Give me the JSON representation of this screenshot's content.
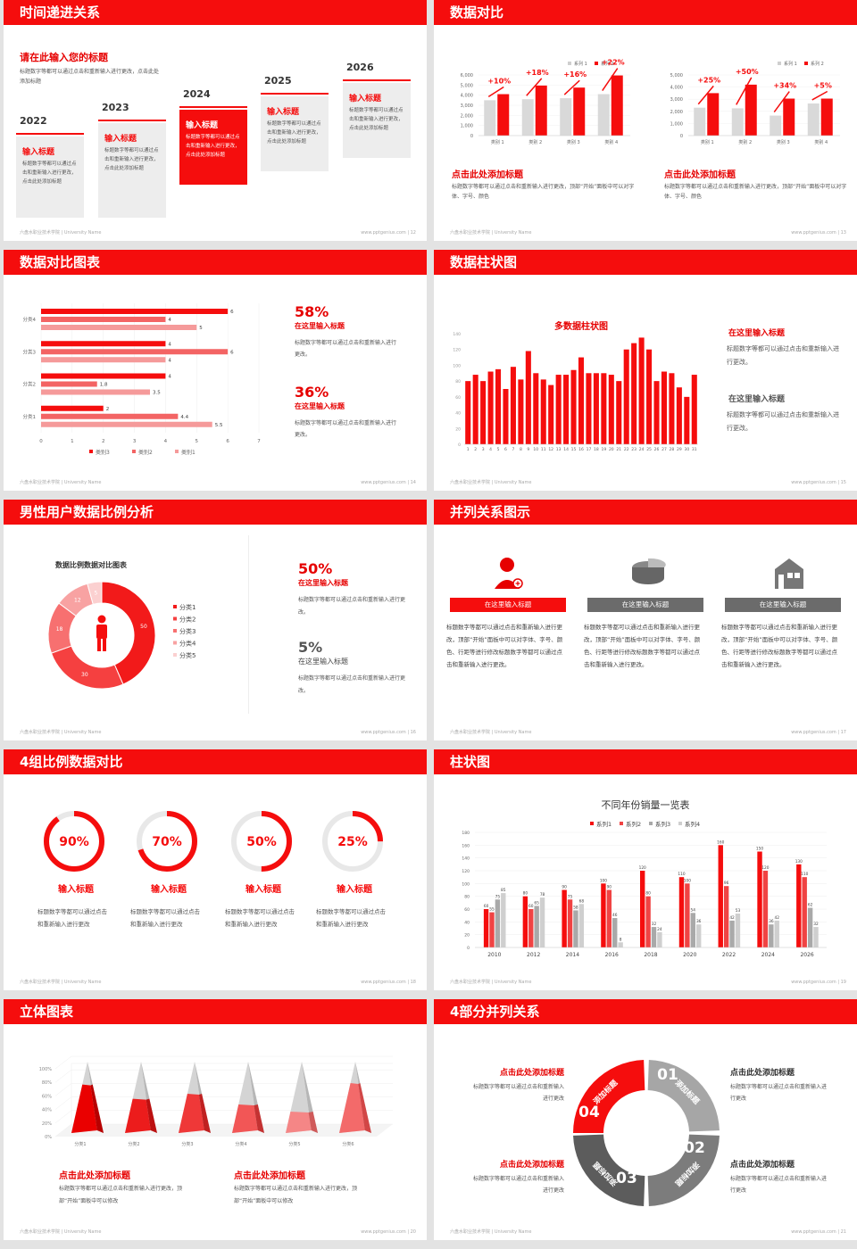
{
  "footer": {
    "school": "六盘水职业技术学院 | University Name",
    "site": "www.pptgenius.com"
  },
  "colors": {
    "accent": "#f50d0d",
    "light": "#f59a9a",
    "pale": "#f9c6c6",
    "gray": "#cfcfcf",
    "dark": "#6b6b6b"
  },
  "s12": {
    "title": "时间递进关系",
    "page": "12",
    "heading": "请在此输入您的标题",
    "desc": "标题数字等都可以通过点击和重新输入进行更改，点击此处添加标题",
    "items": [
      {
        "year": "2022",
        "label": "输入标题",
        "text": "标题数字等都可以通过点击和重新输入进行更改，点击此处添加标题"
      },
      {
        "year": "2023",
        "label": "输入标题",
        "text": "标题数字等都可以通过点击和重新输入进行更改，点击此处添加标题"
      },
      {
        "year": "2024",
        "label": "输入标题",
        "text": "标题数字等都可以通过点击和重新输入进行更改，点击此处添加标题"
      },
      {
        "year": "2025",
        "label": "输入标题",
        "text": "标题数字等都可以通过点击和重新输入进行更改，点击此处添加标题"
      },
      {
        "year": "2026",
        "label": "输入标题",
        "text": "标题数字等都可以通过点击和重新输入进行更改，点击此处添加标题"
      }
    ]
  },
  "s13": {
    "title": "数据对比",
    "page": "13",
    "legend": [
      "系列 1",
      "系列 2"
    ],
    "cats": [
      "类别 1",
      "类别 2",
      "类别 3",
      "类别 4"
    ],
    "charts": [
      {
        "ticks": [
          "0",
          "1,000",
          "2,000",
          "3,000",
          "4,000",
          "5,000",
          "6,000"
        ],
        "pct": [
          "+10%",
          "+18%",
          "+16%",
          "+22%"
        ],
        "heading": "点击此处添加标题",
        "text": "标题数字等都可以通过点击和重新输入进行更改，顶部“开始”面板中可以对字体、字号、颜色"
      },
      {
        "ticks": [
          "0",
          "1,000",
          "2,000",
          "3,000",
          "4,000",
          "5,000"
        ],
        "pct": [
          "+25%",
          "+50%",
          "+34%",
          "+5%"
        ],
        "heading": "点击此处添加标题",
        "text": "标题数字等都可以通过点击和重新输入进行更改，顶部“开始”面板中可以对字体、字号、颜色"
      }
    ]
  },
  "s14": {
    "title": "数据对比图表",
    "page": "14",
    "cats": [
      "分类4",
      "分类3",
      "分类2",
      "分类1"
    ],
    "ticks": [
      "0",
      "1",
      "2",
      "3",
      "4",
      "5",
      "6",
      "7"
    ],
    "legend": [
      "类别3",
      "类别2",
      "类别1"
    ],
    "stats": [
      {
        "pct": "58%",
        "label": "在这里输入标题",
        "text": "标题数字等都可以通过点击和重新输入进行更改。"
      },
      {
        "pct": "36%",
        "label": "在这里输入标题",
        "text": "标题数字等都可以通过点击和重新输入进行更改。"
      }
    ]
  },
  "s15": {
    "title": "数据柱状图",
    "page": "15",
    "chart_title": "多数据柱状图",
    "yticks": [
      "0",
      "20",
      "40",
      "60",
      "80",
      "100",
      "120",
      "140"
    ],
    "notes": [
      {
        "label": "在这里输入标题",
        "text": "标题数字等都可以通过点击和重新输入进行更改。"
      },
      {
        "label": "在这里输入标题",
        "text": "标题数字等都可以通过点击和重新输入进行更改。"
      }
    ]
  },
  "s16": {
    "title": "男性用户数据比例分析",
    "page": "16",
    "chart_title": "数据比例数据对比图表",
    "legend": [
      "分类1",
      "分类2",
      "分类3",
      "分类4",
      "分类5"
    ],
    "stats": [
      {
        "pct": "50%",
        "label": "在这里输入标题",
        "text": "标题数字等都可以通过点击和重新输入进行更改。"
      },
      {
        "pct": "5%",
        "label": "在这里输入标题",
        "text": "标题数字等都可以通过点击和重新输入进行更改。"
      }
    ]
  },
  "s17": {
    "title": "并列关系图示",
    "page": "17",
    "cols": [
      {
        "label": "在这里输入标题",
        "text": "标题数字等都可以通过点击和重新输入进行更改，顶部“开始”面板中可以对字体、字号、颜色、行距等进行修改标题数字等都可以通过点击和重新输入进行更改。"
      },
      {
        "label": "在这里输入标题",
        "text": "标题数字等都可以通过点击和重新输入进行更改，顶部“开始”面板中可以对字体、字号、颜色、行距等进行修改标题数字等都可以通过点击和重新输入进行更改。"
      },
      {
        "label": "在这里输入标题",
        "text": "标题数字等都可以通过点击和重新输入进行更改，顶部“开始”面板中可以对字体、字号、颜色、行距等进行修改标题数字等都可以通过点击和重新输入进行更改。"
      }
    ]
  },
  "s18": {
    "title": "4组比例数据对比",
    "page": "18",
    "rings": [
      {
        "pct": "90%",
        "value": 0.9,
        "label": "输入标题",
        "text": "标题数字等都可以通过点击和重新输入进行更改"
      },
      {
        "pct": "70%",
        "value": 0.7,
        "label": "输入标题",
        "text": "标题数字等都可以通过点击和重新输入进行更改"
      },
      {
        "pct": "50%",
        "value": 0.5,
        "label": "输入标题",
        "text": "标题数字等都可以通过点击和重新输入进行更改"
      },
      {
        "pct": "25%",
        "value": 0.25,
        "label": "输入标题",
        "text": "标题数字等都可以通过点击和重新输入进行更改"
      }
    ]
  },
  "s19": {
    "title": "柱状图",
    "page": "19",
    "chart_title": "不同年份销量一览表",
    "legend": [
      "系列1",
      "系列2",
      "系列3",
      "系列4"
    ],
    "yticks": [
      "0",
      "20",
      "40",
      "60",
      "80",
      "100",
      "120",
      "140",
      "160",
      "180"
    ]
  },
  "s20": {
    "title": "立体图表",
    "page": "20",
    "yticks": [
      "0%",
      "20%",
      "40%",
      "60%",
      "80%",
      "100%"
    ],
    "cats": [
      "分类1",
      "分类2",
      "分类3",
      "分类4",
      "分类5",
      "分类6"
    ],
    "notes": [
      {
        "label": "点击此处添加标题",
        "text": "标题数字等都可以通过点击和重新输入进行更改，顶部“开始”面板中可以修改"
      },
      {
        "label": "点击此处添加标题",
        "text": "标题数字等都可以通过点击和重新输入进行更改，顶部“开始”面板中可以修改"
      }
    ]
  },
  "s21": {
    "title": "4部分并列关系",
    "page": "21",
    "segment_label": "添加标题",
    "nums": [
      "01",
      "02",
      "03",
      "04"
    ],
    "notes": [
      {
        "label": "点击此处添加标题",
        "text": "标题数字等都可以通过点击和重新输入进行更改"
      },
      {
        "label": "点击此处添加标题",
        "text": "标题数字等都可以通过点击和重新输入进行更改"
      },
      {
        "label": "点击此处添加标题",
        "text": "标题数字等都可以通过点击和重新输入进行更改"
      },
      {
        "label": "点击此处添加标题",
        "text": "标题数字等都可以通过点击和重新输入进行更改"
      }
    ]
  },
  "chart_data": [
    {
      "type": "bar",
      "title": "",
      "categories": [
        "类别 1",
        "类别 2",
        "类别 3",
        "类别 4"
      ],
      "series": [
        {
          "name": "系列 1",
          "values": [
            3500,
            3600,
            3700,
            4100
          ]
        },
        {
          "name": "系列 2",
          "values": [
            4100,
            4950,
            4750,
            5950
          ]
        }
      ],
      "ylim": [
        0,
        6000
      ]
    },
    {
      "type": "bar",
      "title": "",
      "categories": [
        "类别 4",
        "类别 3",
        "类别 2",
        "类别 1"
      ],
      "series": [
        {
          "name": "类别3",
          "values": [
            6,
            4,
            4,
            2
          ]
        },
        {
          "name": "类别2",
          "values": [
            4,
            6,
            1.8,
            4.4
          ]
        },
        {
          "name": "类别1",
          "values": [
            5,
            4,
            3.5,
            5.5
          ]
        }
      ],
      "xlim": [
        0,
        7
      ]
    },
    {
      "type": "bar",
      "title": "多数据柱状图",
      "categories": [
        "1",
        "2",
        "3",
        "4",
        "5",
        "6",
        "7",
        "8",
        "9",
        "10",
        "11",
        "12",
        "13",
        "14",
        "15",
        "16",
        "17",
        "18",
        "19",
        "20",
        "21",
        "22",
        "23",
        "24",
        "25",
        "26",
        "27",
        "28",
        "29",
        "30",
        "31"
      ],
      "values": [
        80,
        88,
        80,
        92,
        95,
        70,
        98,
        82,
        118,
        90,
        82,
        75,
        88,
        88,
        94,
        110,
        90,
        90,
        90,
        88,
        80,
        120,
        128,
        135,
        120,
        80,
        92,
        90,
        72,
        60,
        88
      ],
      "ylim": [
        0,
        140
      ]
    },
    {
      "type": "pie",
      "title": "数据比例数据对比图表",
      "categories": [
        "分类1",
        "分类2",
        "分类3",
        "分类4",
        "分类5"
      ],
      "values": [
        50,
        30,
        18,
        12,
        5
      ]
    },
    {
      "type": "bar",
      "title": "不同年份销量一览表",
      "categories": [
        "2010",
        "2012",
        "2014",
        "2016",
        "2018",
        "2020",
        "2022",
        "2024",
        "2026"
      ],
      "series": [
        {
          "name": "系列1",
          "values": [
            60,
            80,
            90,
            100,
            120,
            110,
            160,
            150,
            130
          ]
        },
        {
          "name": "系列2",
          "values": [
            55,
            60,
            75,
            90,
            80,
            100,
            96,
            120,
            110
          ]
        },
        {
          "name": "系列3",
          "values": [
            75,
            65,
            58,
            46,
            32,
            54,
            42,
            36,
            62
          ]
        },
        {
          "name": "系列4",
          "values": [
            85,
            78,
            68,
            8,
            24,
            36,
            53,
            42,
            32
          ]
        }
      ],
      "ylim": [
        0,
        180
      ]
    },
    {
      "type": "bar",
      "title": "",
      "categories": [
        "分类1",
        "分类2",
        "分类3",
        "分类4",
        "分类5",
        "分类6"
      ],
      "values": [
        68,
        48,
        55,
        40,
        30,
        70
      ],
      "ylim": [
        0,
        100
      ]
    }
  ]
}
